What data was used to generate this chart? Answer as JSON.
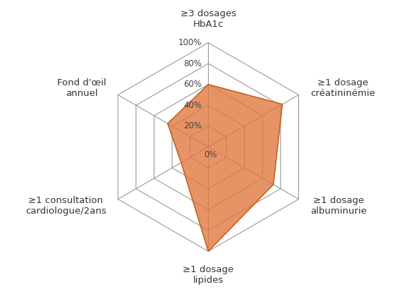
{
  "categories": [
    "≥3 dosages\nHbA1c",
    "≥1 dosage\ncréatininémie",
    "≥1 dosage\nalbuminurie",
    "≥1 dosage\nlipides",
    "≥1 consultation\ncardiologue/2ans",
    "Fond d'œil\nannuel"
  ],
  "values": [
    0.6,
    0.82,
    0.72,
    1.0,
    0.3,
    0.45
  ],
  "fill_color": "#E07840",
  "fill_alpha": 0.8,
  "edge_color": "#C06020",
  "grid_color": "#999999",
  "tick_labels": [
    "0%",
    "20%",
    "40%",
    "60%",
    "80%",
    "100%"
  ],
  "tick_values": [
    0.0,
    0.2,
    0.4,
    0.6,
    0.8,
    1.0
  ],
  "background_color": "#ffffff",
  "label_fontsize": 9.5,
  "tick_fontsize": 8.5,
  "label_color": "#333333"
}
